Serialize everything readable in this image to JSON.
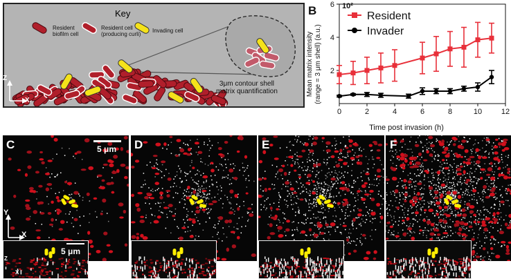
{
  "panels": {
    "a": "A",
    "b": "B",
    "c": "C",
    "d": "D",
    "e": "E",
    "f": "F"
  },
  "key": {
    "title": "Key",
    "resident_l1": "Resident",
    "resident_l2": "biofilm cell",
    "producing_l1": "Resident cell",
    "producing_l2": "(producing curli)",
    "invading": "Invading cell",
    "shell_l1": "3μm contour shell",
    "shell_l2": "matrix quantification",
    "axis_z": "Z",
    "axis_x": "X"
  },
  "micro": {
    "scale_main": "5 μm",
    "scale_inset": "5 μm",
    "axis_y": "Y",
    "axis_x": "X",
    "axis_z": "Z"
  },
  "chart_data": {
    "type": "line",
    "xlabel": "Time post  invasion (h)",
    "ylabel_l1": "Mean matrix intensity",
    "ylabel_l2": "(range = 3 μm shell) (a.u.)",
    "y_exponent": "10²",
    "xlim": [
      0,
      12
    ],
    "ylim": [
      0,
      6
    ],
    "xticks": [
      "0",
      "2",
      "4",
      "6",
      "8",
      "10",
      "12"
    ],
    "yticks": [
      "2",
      "4",
      "6"
    ],
    "legend_position": "top-right",
    "series": [
      {
        "name": "Resident",
        "color": "#e8303a",
        "x": [
          0,
          1,
          2,
          3,
          4,
          6,
          7,
          8,
          9,
          10,
          11
        ],
        "y": [
          1.75,
          1.85,
          2.0,
          2.15,
          2.3,
          2.75,
          3.0,
          3.3,
          3.4,
          3.85,
          3.95
        ],
        "err": [
          0.55,
          0.7,
          0.8,
          0.9,
          0.95,
          0.95,
          1.05,
          1.05,
          1.2,
          1.05,
          0.9
        ]
      },
      {
        "name": "Invader",
        "color": "#000000",
        "x": [
          0,
          1,
          2,
          3,
          5,
          6,
          7,
          8,
          9,
          10,
          11
        ],
        "y": [
          0.45,
          0.55,
          0.55,
          0.5,
          0.45,
          0.75,
          0.75,
          0.75,
          0.9,
          1.0,
          1.6
        ],
        "err": [
          0.05,
          0.05,
          0.12,
          0.12,
          0.12,
          0.2,
          0.15,
          0.15,
          0.15,
          0.25,
          0.4
        ]
      }
    ]
  }
}
